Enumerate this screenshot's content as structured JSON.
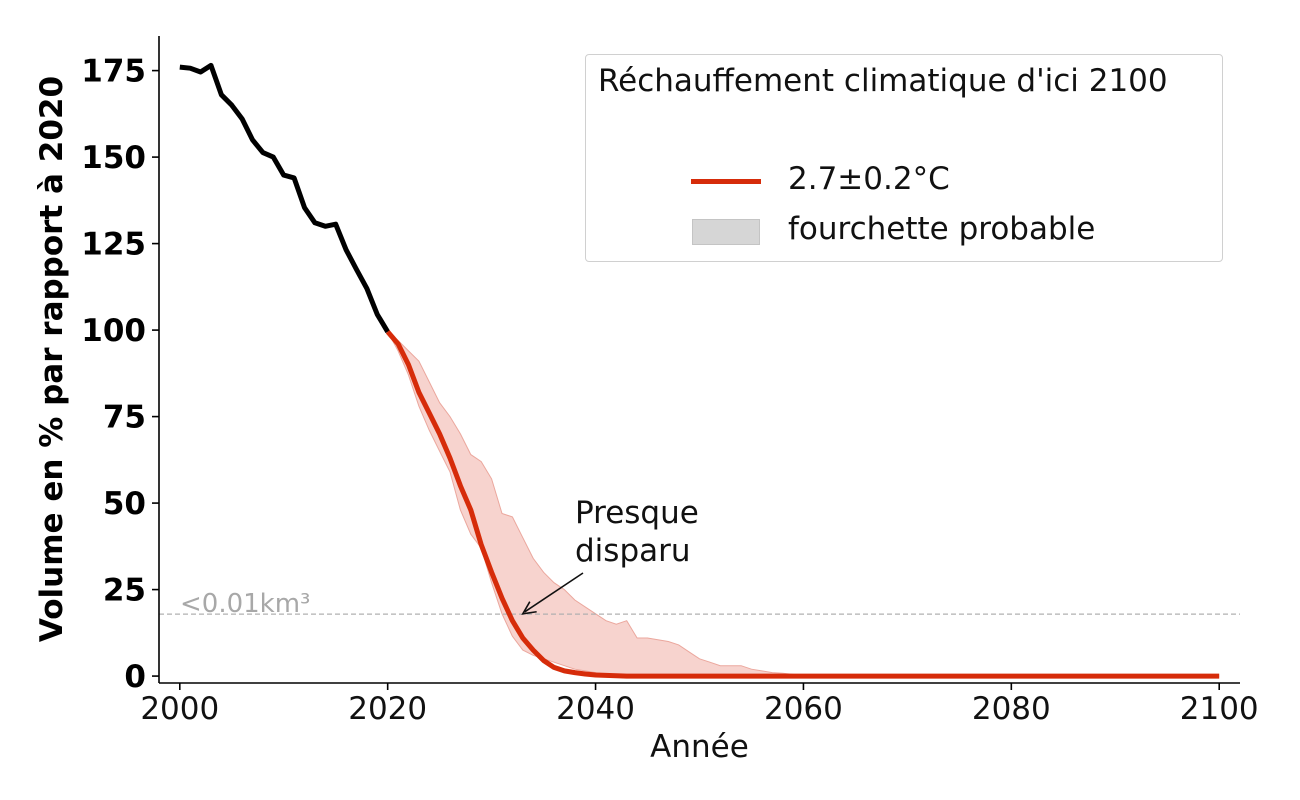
{
  "chart_data": {
    "type": "line",
    "xlabel": "Année",
    "ylabel": "Volume en % par rapport à 2020",
    "xlim": [
      1998,
      2102
    ],
    "ylim": [
      -2,
      185
    ],
    "xticks": [
      2000,
      2020,
      2040,
      2060,
      2080,
      2100
    ],
    "yticks": [
      0,
      25,
      50,
      75,
      100,
      125,
      150,
      175
    ],
    "x_tick_labels": [
      "2000",
      "2020",
      "2040",
      "2060",
      "2080",
      "2100"
    ],
    "y_tick_labels": [
      "0",
      "25",
      "50",
      "75",
      "100",
      "125",
      "150",
      "175"
    ],
    "grid": false,
    "legend_position": "top-right",
    "legend": {
      "title": "Réchauffement climatique d'ici 2100",
      "entries": [
        "2.7±0.2°C",
        "fourchette probable"
      ]
    },
    "series": [
      {
        "color": "#000000",
        "x": [
          2000,
          2001,
          2002,
          2003,
          2004,
          2005,
          2006,
          2007,
          2008,
          2009,
          2010,
          2011,
          2012,
          2013,
          2014,
          2015,
          2016,
          2017,
          2018,
          2019,
          2020
        ],
        "y": [
          176,
          175.7,
          174.6,
          176.5,
          168,
          165,
          161,
          155,
          151.3,
          150,
          144.8,
          144,
          135.4,
          131,
          130,
          130.6,
          123.2,
          117.5,
          112,
          104.5,
          99.5
        ]
      },
      {
        "name": "2.7±0.2°C",
        "color": "#d62c0a",
        "x": [
          2020,
          2021,
          2022,
          2023,
          2024,
          2025,
          2026,
          2027,
          2028,
          2029,
          2030,
          2031,
          2032,
          2033,
          2034,
          2035,
          2036,
          2037,
          2038,
          2039,
          2040,
          2041,
          2042,
          2043,
          2044,
          2045,
          2050,
          2060,
          2070,
          2080,
          2090,
          2100
        ],
        "y": [
          99.5,
          96,
          90,
          82,
          76,
          70,
          63,
          55,
          48,
          38,
          30,
          22.5,
          16,
          11,
          7.5,
          4.5,
          2.5,
          1.5,
          1,
          0.6,
          0.3,
          0.2,
          0.1,
          0,
          0,
          0,
          0,
          0,
          0,
          0,
          0,
          0
        ]
      }
    ],
    "band": {
      "name": "fourchette probable",
      "color": "#f4c4bd",
      "x": [
        2020,
        2021,
        2022,
        2023,
        2024,
        2025,
        2026,
        2027,
        2028,
        2029,
        2030,
        2031,
        2032,
        2033,
        2034,
        2035,
        2036,
        2037,
        2038,
        2039,
        2040,
        2041,
        2042,
        2043,
        2044,
        2045,
        2046,
        2047,
        2048,
        2049,
        2050,
        2051,
        2052,
        2053,
        2054,
        2055,
        2056,
        2057,
        2058,
        2059,
        2060,
        2065,
        2100
      ],
      "upper": [
        99.5,
        97,
        94,
        91,
        85,
        79,
        75,
        70,
        64,
        62,
        57,
        47,
        46,
        40,
        34,
        30,
        27,
        25,
        22,
        20,
        18,
        16,
        15,
        16,
        11,
        11,
        10.5,
        10,
        9,
        7,
        5,
        4,
        3,
        3,
        3,
        2,
        1.5,
        1,
        0.8,
        0.5,
        0,
        0,
        0
      ],
      "lower": [
        99.5,
        94,
        87,
        78,
        71,
        65,
        59,
        48,
        41,
        37,
        27,
        18,
        11.5,
        7.5,
        6,
        5,
        4,
        3,
        2,
        1.5,
        1,
        0.5,
        0.3,
        0,
        0,
        0,
        0,
        0,
        0,
        0,
        0,
        0,
        0,
        0,
        0,
        0,
        0,
        0,
        0,
        0,
        0,
        0,
        0
      ]
    },
    "threshold": {
      "y": 17.9,
      "label": "<0.01km³",
      "color": "#b0b0b0"
    },
    "annotations": [
      {
        "text": [
          "Presque",
          "disparu"
        ],
        "x": 2033,
        "y": 18
      }
    ]
  }
}
